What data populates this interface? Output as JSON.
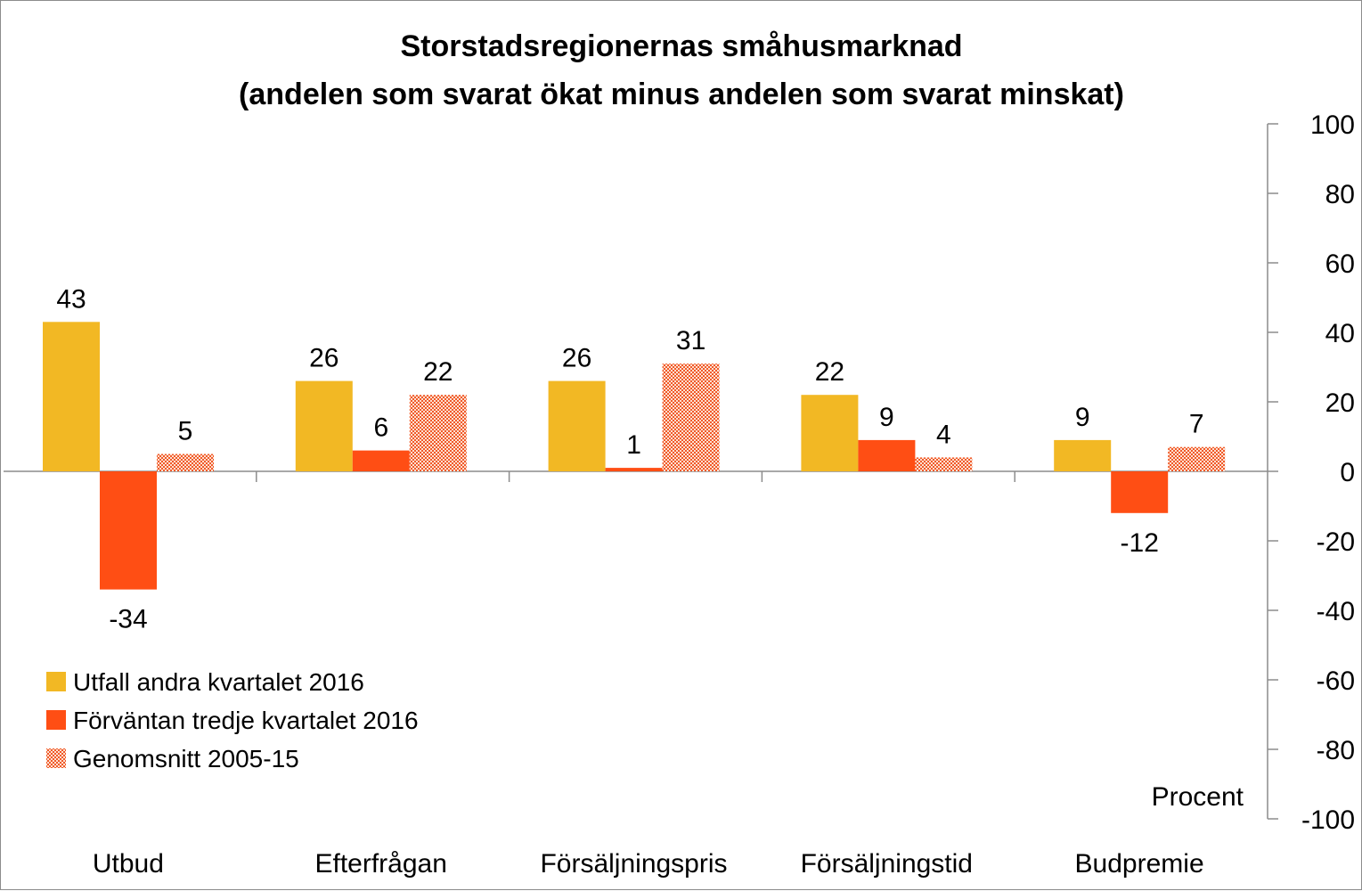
{
  "chart_data": {
    "type": "bar",
    "title": "Storstadsregionernas småhusmarknad",
    "subtitle": "(andelen som svarat ökat minus andelen som svarat minskat)",
    "unit_label": "Procent",
    "categories": [
      "Utbud",
      "Efterfrågan",
      "Försäljningspris",
      "Försäljningstid",
      "Budpremie"
    ],
    "series": [
      {
        "name": "Utfall andra kvartalet 2016",
        "values": [
          43,
          26,
          26,
          22,
          9
        ],
        "color": "#F2B824",
        "pattern": "solid"
      },
      {
        "name": "Förväntan tredje kvartalet 2016",
        "values": [
          -34,
          6,
          1,
          9,
          -12
        ],
        "color": "#FF4E14",
        "pattern": "solid"
      },
      {
        "name": "Genomsnitt 2005-15",
        "values": [
          5,
          22,
          31,
          4,
          7
        ],
        "color": "#F05A28",
        "pattern": "dotted"
      }
    ],
    "ylim": [
      -100,
      100
    ],
    "yticks": [
      100,
      80,
      60,
      40,
      20,
      0,
      -20,
      -40,
      -60,
      -80,
      -100
    ],
    "yaxis_position": "right",
    "legend_position": "bottom-left",
    "grid": false
  }
}
